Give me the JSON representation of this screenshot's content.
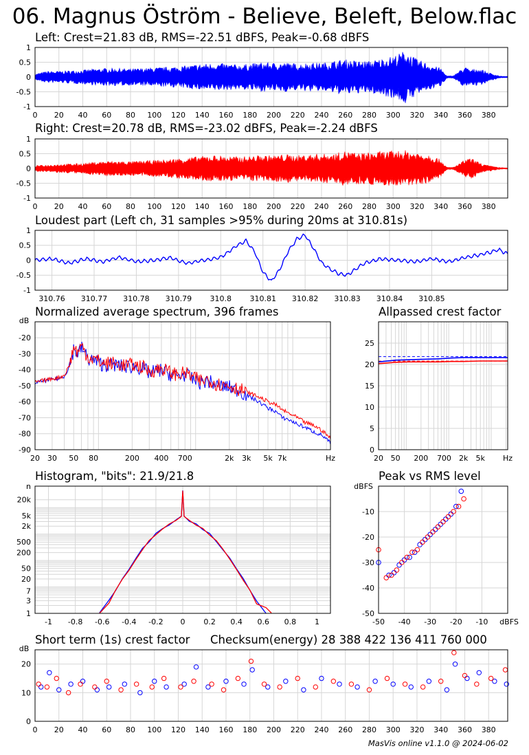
{
  "title": "06. Magnus Öström - Believe, Beleft, Below.flac",
  "footer": "MasVis online v1.1.0 @ 2024-06-02",
  "colors": {
    "left": "#0000ff",
    "right": "#ff0000",
    "grid": "#d6d6d6",
    "axis": "#000000"
  },
  "chart_data": [
    {
      "id": "left",
      "type": "area",
      "title": "Left: Crest=21.83 dB, RMS=-22.51 dBFS, Peak=-0.68 dBFS",
      "xlim": [
        0,
        396
      ],
      "ylim": [
        -1,
        1
      ],
      "xticks": [
        0,
        20,
        40,
        60,
        80,
        100,
        120,
        140,
        160,
        180,
        200,
        220,
        240,
        260,
        280,
        300,
        320,
        340,
        360,
        380
      ],
      "yticks": [
        1,
        0.5,
        0,
        -0.5,
        -1
      ],
      "ytick_labels": [
        "1",
        "0.5",
        "0",
        "-0.5",
        "-1"
      ],
      "x": [
        0,
        10,
        20,
        30,
        40,
        50,
        60,
        70,
        80,
        90,
        100,
        110,
        120,
        130,
        140,
        150,
        160,
        170,
        180,
        190,
        200,
        210,
        220,
        230,
        240,
        250,
        260,
        270,
        280,
        290,
        300,
        305,
        310,
        315,
        320,
        330,
        340,
        345,
        350,
        355,
        360,
        365,
        370,
        375,
        380,
        390,
        396
      ],
      "envelope": [
        0.1,
        0.2,
        0.2,
        0.22,
        0.24,
        0.28,
        0.3,
        0.3,
        0.28,
        0.3,
        0.32,
        0.34,
        0.36,
        0.4,
        0.45,
        0.47,
        0.45,
        0.42,
        0.45,
        0.5,
        0.48,
        0.5,
        0.45,
        0.5,
        0.48,
        0.55,
        0.6,
        0.55,
        0.55,
        0.62,
        0.72,
        0.8,
        0.92,
        0.75,
        0.6,
        0.45,
        0.3,
        0.04,
        0.04,
        0.2,
        0.35,
        0.25,
        0.3,
        0.25,
        0.15,
        0.03,
        0.02
      ]
    },
    {
      "id": "right",
      "type": "area",
      "title": "Right: Crest=20.78 dB, RMS=-23.02 dBFS, Peak=-2.24 dBFS",
      "xlim": [
        0,
        396
      ],
      "ylim": [
        -1,
        1
      ],
      "xticks": [
        0,
        20,
        40,
        60,
        80,
        100,
        120,
        140,
        160,
        180,
        200,
        220,
        240,
        260,
        280,
        300,
        320,
        340,
        360,
        380
      ],
      "yticks": [
        1,
        0.5,
        0,
        -0.5,
        -1
      ],
      "ytick_labels": [
        "1",
        "0.5",
        "0",
        "-0.5",
        "-1"
      ],
      "x": [
        0,
        10,
        20,
        30,
        40,
        50,
        60,
        70,
        80,
        90,
        100,
        110,
        120,
        130,
        140,
        150,
        160,
        170,
        180,
        190,
        200,
        210,
        220,
        230,
        240,
        250,
        260,
        270,
        280,
        290,
        300,
        310,
        320,
        330,
        340,
        345,
        350,
        355,
        360,
        365,
        370,
        375,
        380,
        390,
        396
      ],
      "envelope": [
        0.1,
        0.12,
        0.15,
        0.16,
        0.18,
        0.22,
        0.25,
        0.25,
        0.24,
        0.26,
        0.28,
        0.3,
        0.35,
        0.38,
        0.42,
        0.45,
        0.42,
        0.4,
        0.42,
        0.45,
        0.45,
        0.48,
        0.45,
        0.48,
        0.5,
        0.5,
        0.6,
        0.52,
        0.55,
        0.58,
        0.6,
        0.62,
        0.55,
        0.5,
        0.3,
        0.04,
        0.04,
        0.15,
        0.3,
        0.35,
        0.25,
        0.15,
        0.1,
        0.03,
        0.02
      ]
    },
    {
      "id": "loudest",
      "type": "line",
      "title": "Loudest part (Left ch, 31 samples >95% during 20ms at 310.81s)",
      "xlim": [
        310.756,
        310.868
      ],
      "ylim": [
        -1,
        1
      ],
      "xticks": [
        310.76,
        310.77,
        310.78,
        310.79,
        310.8,
        310.81,
        310.82,
        310.83,
        310.84,
        310.85
      ],
      "xtick_labels": [
        "310.76",
        "310.77",
        "310.78",
        "310.79",
        "310.8",
        "310.81",
        "310.82",
        "310.83",
        "310.84",
        "310.85"
      ],
      "yticks": [
        1,
        0.5,
        0,
        -0.5,
        -1
      ],
      "ytick_labels": [
        "1",
        "0.5",
        "0",
        "-0.5",
        "-1"
      ],
      "x": [
        310.756,
        310.76,
        310.764,
        310.768,
        310.772,
        310.776,
        310.78,
        310.784,
        310.788,
        310.792,
        310.796,
        310.8,
        310.804,
        310.806,
        310.808,
        310.81,
        310.812,
        310.814,
        310.816,
        310.818,
        310.82,
        310.822,
        310.824,
        310.826,
        310.828,
        310.83,
        310.834,
        310.838,
        310.842,
        310.846,
        310.85,
        310.854,
        310.858,
        310.862,
        310.866,
        310.868
      ],
      "y": [
        0.0,
        0.05,
        -0.1,
        0.05,
        -0.05,
        0.1,
        -0.05,
        0.0,
        0.08,
        -0.1,
        0.0,
        0.1,
        0.5,
        0.65,
        0.3,
        -0.4,
        -0.7,
        -0.3,
        0.3,
        0.7,
        0.85,
        0.4,
        -0.1,
        -0.3,
        -0.45,
        -0.5,
        -0.1,
        0.05,
        0.0,
        -0.05,
        0.05,
        -0.05,
        0.1,
        0.2,
        0.35,
        0.2
      ]
    },
    {
      "id": "spectrum",
      "type": "line",
      "title": "Normalized average spectrum, 396 frames",
      "ylabel": "dB",
      "xscale": "log",
      "xlim": [
        20,
        22000
      ],
      "ylim": [
        -90,
        -10
      ],
      "xticks": [
        20,
        30,
        50,
        80,
        200,
        400,
        700,
        2000,
        3000,
        5000,
        7000,
        22000
      ],
      "xtick_labels": [
        "20",
        "30",
        "50",
        "80",
        "200",
        "400",
        "700",
        "2k",
        "3k",
        "5k",
        "7k",
        "Hz"
      ],
      "yticks": [
        -20,
        -30,
        -40,
        -50,
        -60,
        -70,
        -80,
        -90
      ],
      "ytick_labels": [
        "-20",
        "-30",
        "-40",
        "-50",
        "-60",
        "-70",
        "-80",
        "-90"
      ],
      "x": [
        20,
        25,
        30,
        35,
        40,
        45,
        50,
        55,
        60,
        70,
        80,
        100,
        130,
        160,
        200,
        250,
        300,
        400,
        500,
        600,
        700,
        800,
        1000,
        1200,
        1500,
        2000,
        2500,
        3000,
        4000,
        5000,
        6000,
        7000,
        8000,
        10000,
        12000,
        15000,
        18000,
        22000
      ],
      "series": [
        {
          "name": "Left",
          "values": [
            -48,
            -47,
            -46,
            -45.5,
            -44,
            -38,
            -27,
            -30,
            -26,
            -33,
            -34,
            -37,
            -37,
            -38,
            -38,
            -39,
            -42,
            -40,
            -43,
            -44,
            -43,
            -45,
            -48,
            -47,
            -50,
            -51,
            -53,
            -56,
            -60,
            -64,
            -66,
            -70,
            -71,
            -74,
            -76,
            -79,
            -81,
            -86
          ]
        },
        {
          "name": "Right",
          "values": [
            -48,
            -46.5,
            -45.5,
            -45,
            -43.5,
            -37,
            -26,
            -29,
            -25,
            -32,
            -33,
            -36,
            -36,
            -37,
            -37,
            -38,
            -41,
            -39,
            -42,
            -43,
            -42,
            -44,
            -47,
            -46,
            -49,
            -50,
            -52,
            -54,
            -57,
            -60,
            -62,
            -65,
            -67,
            -70,
            -73,
            -75,
            -78,
            -83
          ]
        }
      ]
    },
    {
      "id": "allpassed",
      "type": "line",
      "title": "Allpassed crest factor",
      "xscale": "log",
      "xlim": [
        20,
        22000
      ],
      "ylim": [
        0,
        30
      ],
      "xticks": [
        20,
        50,
        200,
        700,
        2000,
        5000,
        22000
      ],
      "xtick_labels": [
        "20",
        "50",
        "200",
        "700",
        "2k",
        "5k",
        "Hz"
      ],
      "yticks": [
        25,
        20,
        15,
        10,
        5,
        0
      ],
      "ytick_labels": [
        "25",
        "20",
        "15",
        "10",
        "5",
        "0"
      ],
      "x": [
        20,
        50,
        100,
        200,
        500,
        1000,
        2000,
        5000,
        10000,
        22000
      ],
      "series": [
        {
          "name": "Left",
          "values": [
            20.6,
            21.0,
            21.1,
            21.2,
            21.3,
            21.5,
            21.6,
            21.6,
            21.6,
            21.6
          ]
        },
        {
          "name": "Right",
          "values": [
            20.2,
            20.5,
            20.6,
            20.6,
            20.6,
            20.7,
            20.7,
            20.8,
            20.8,
            20.8
          ]
        }
      ],
      "reference_lines": [
        {
          "name": "Left",
          "value": 21.83
        },
        {
          "name": "Right",
          "value": 20.78
        }
      ]
    },
    {
      "id": "histogram",
      "type": "line",
      "title": "Histogram, \"bits\": 21.9/21.8",
      "yscale": "log",
      "xlim": [
        -1.1,
        1.1
      ],
      "ylim": [
        1,
        65536
      ],
      "xticks": [
        -1,
        -0.8,
        -0.6,
        -0.4,
        -0.2,
        0,
        0.2,
        0.4,
        0.6,
        0.8,
        1
      ],
      "xtick_labels": [
        "-1",
        "-0.8",
        "-0.6",
        "-0.4",
        "-0.2",
        "0",
        "0.2",
        "0.4",
        "0.6",
        "0.8",
        "1"
      ],
      "yticks": [
        65536,
        20000,
        5000,
        2000,
        500,
        200,
        50,
        20,
        7,
        3,
        1
      ],
      "ytick_labels": [
        "n",
        "20k",
        "5k",
        "2k",
        "500",
        "200",
        "50",
        "20",
        "7",
        "3",
        "1"
      ],
      "x": [
        -0.62,
        -0.55,
        -0.5,
        -0.45,
        -0.4,
        -0.35,
        -0.3,
        -0.25,
        -0.2,
        -0.15,
        -0.1,
        -0.05,
        -0.01,
        0,
        0.01,
        0.05,
        0.1,
        0.15,
        0.2,
        0.25,
        0.3,
        0.35,
        0.4,
        0.45,
        0.5,
        0.55,
        0.62,
        0.66
      ],
      "series": [
        {
          "name": "Left",
          "values": [
            1,
            3,
            8,
            20,
            50,
            120,
            270,
            550,
            1000,
            1600,
            2400,
            3300,
            4800,
            45000,
            4800,
            3300,
            2400,
            1600,
            1000,
            550,
            270,
            120,
            50,
            20,
            8,
            3,
            1,
            null
          ]
        },
        {
          "name": "Right",
          "values": [
            1,
            2.5,
            7,
            18,
            45,
            110,
            260,
            540,
            990,
            1580,
            2380,
            3280,
            4700,
            44000,
            4700,
            3280,
            2380,
            1580,
            990,
            540,
            260,
            110,
            45,
            18,
            7,
            2.5,
            1.5,
            1
          ]
        }
      ]
    },
    {
      "id": "peak-vs-rms",
      "type": "scatter",
      "title": "Peak vs RMS level",
      "xlabel": "dBFS",
      "ylabel": "dBFS",
      "xlim": [
        -50,
        0
      ],
      "ylim": [
        -50,
        0
      ],
      "xticks": [
        -50,
        -40,
        -30,
        -20,
        -10
      ],
      "xtick_labels": [
        "-50",
        "-40",
        "-30",
        "-20",
        "-10"
      ],
      "yticks": [
        -10,
        -20,
        -30,
        -40,
        -50
      ],
      "ytick_labels": [
        "-10",
        "-20",
        "-30",
        "-40",
        "-50"
      ],
      "series": [
        {
          "name": "Left",
          "x": [
            -50,
            -46,
            -44,
            -42,
            -40,
            -38,
            -36,
            -34,
            -32,
            -30,
            -28,
            -26,
            -24,
            -22,
            -20,
            -18
          ],
          "y": [
            -30,
            -35,
            -34,
            -31,
            -29,
            -28,
            -26,
            -23,
            -21,
            -19,
            -17,
            -15,
            -13,
            -11,
            -8,
            -2
          ]
        },
        {
          "name": "Right",
          "x": [
            -50,
            -47,
            -45,
            -43,
            -41,
            -39,
            -37,
            -35,
            -33,
            -31,
            -29,
            -27,
            -25,
            -23,
            -21,
            -19,
            -17
          ],
          "y": [
            -25,
            -36,
            -35,
            -33,
            -30,
            -28,
            -26,
            -25,
            -22,
            -20,
            -18,
            -16,
            -14,
            -12,
            -10,
            -8,
            -5
          ]
        }
      ]
    },
    {
      "id": "short-term-crest",
      "type": "scatter",
      "title": "Short term (1s) crest factor",
      "checksum_label": "Checksum(energy) 28 388 422 136 411 760 000",
      "ylabel": "dB",
      "xlim": [
        0,
        396
      ],
      "ylim": [
        0,
        25
      ],
      "xticks": [
        0,
        20,
        40,
        60,
        80,
        100,
        120,
        140,
        160,
        180,
        200,
        220,
        240,
        260,
        280,
        300,
        320,
        340,
        360,
        380
      ],
      "yticks": [
        20,
        10,
        0
      ],
      "ytick_labels": [
        "20",
        "10",
        "0"
      ],
      "series": [
        {
          "name": "Left",
          "x": [
            5,
            12,
            20,
            30,
            40,
            52,
            62,
            75,
            88,
            100,
            110,
            125,
            135,
            145,
            160,
            175,
            182,
            195,
            210,
            225,
            240,
            255,
            270,
            285,
            300,
            315,
            330,
            345,
            352,
            362,
            372,
            385,
            395
          ],
          "y": [
            12,
            17,
            11,
            13,
            14,
            11,
            12,
            13,
            10,
            14,
            12,
            13,
            19,
            12,
            14,
            13,
            18,
            12,
            14,
            11,
            15,
            13,
            12,
            14,
            13,
            12,
            14,
            11,
            20,
            15,
            17,
            14,
            13
          ]
        },
        {
          "name": "Right",
          "x": [
            3,
            10,
            18,
            28,
            38,
            50,
            60,
            72,
            85,
            98,
            108,
            122,
            133,
            148,
            158,
            170,
            181,
            192,
            205,
            220,
            235,
            250,
            265,
            280,
            295,
            310,
            325,
            340,
            351,
            360,
            370,
            382,
            394
          ],
          "y": [
            13,
            12,
            15,
            10,
            13,
            12,
            14,
            11,
            13,
            12,
            15,
            12,
            14,
            13,
            11,
            15,
            21,
            13,
            12,
            15,
            12,
            14,
            13,
            11,
            15,
            13,
            12,
            14,
            24,
            16,
            13,
            15,
            18
          ]
        }
      ]
    }
  ]
}
